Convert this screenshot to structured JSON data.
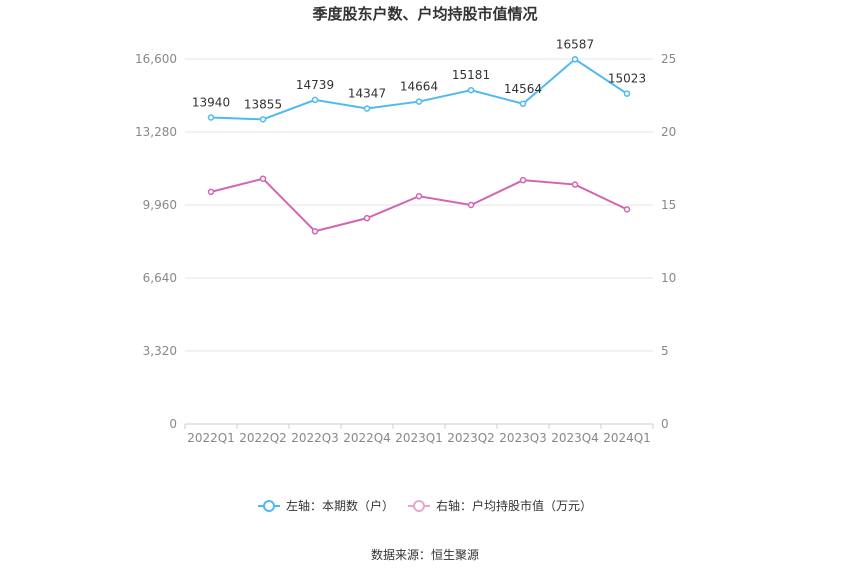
{
  "chart_data": {
    "type": "line",
    "title": "季度股东户数、户均持股市值情况",
    "categories": [
      "2022Q1",
      "2022Q2",
      "2022Q3",
      "2022Q4",
      "2023Q1",
      "2023Q2",
      "2023Q3",
      "2023Q4",
      "2024Q1"
    ],
    "left_axis": {
      "ticks": [
        "0",
        "3,320",
        "6,640",
        "9,960",
        "13,280",
        "16,600"
      ],
      "ylim": [
        0,
        16600
      ]
    },
    "right_axis": {
      "ticks": [
        "0",
        "5",
        "10",
        "15",
        "20",
        "25"
      ],
      "ylim": [
        0,
        25
      ]
    },
    "series": [
      {
        "name": "左轴：本期数（户）",
        "axis": "left",
        "color": "#4fbaf0",
        "values": [
          13940,
          13855,
          14739,
          14347,
          14664,
          15181,
          14564,
          16587,
          15023
        ],
        "labels": [
          "13940",
          "13855",
          "14739",
          "14347",
          "14664",
          "15181",
          "14564",
          "16587",
          "15023"
        ]
      },
      {
        "name": "右轴：户均持股市值（万元）",
        "axis": "right",
        "color": "#d364b3",
        "values": [
          15.9,
          16.8,
          13.2,
          14.1,
          15.6,
          15.0,
          16.7,
          16.4,
          14.7
        ]
      }
    ],
    "grid": true,
    "legend_position": "bottom-center"
  },
  "footer": {
    "source": "数据来源：恒生聚源"
  }
}
